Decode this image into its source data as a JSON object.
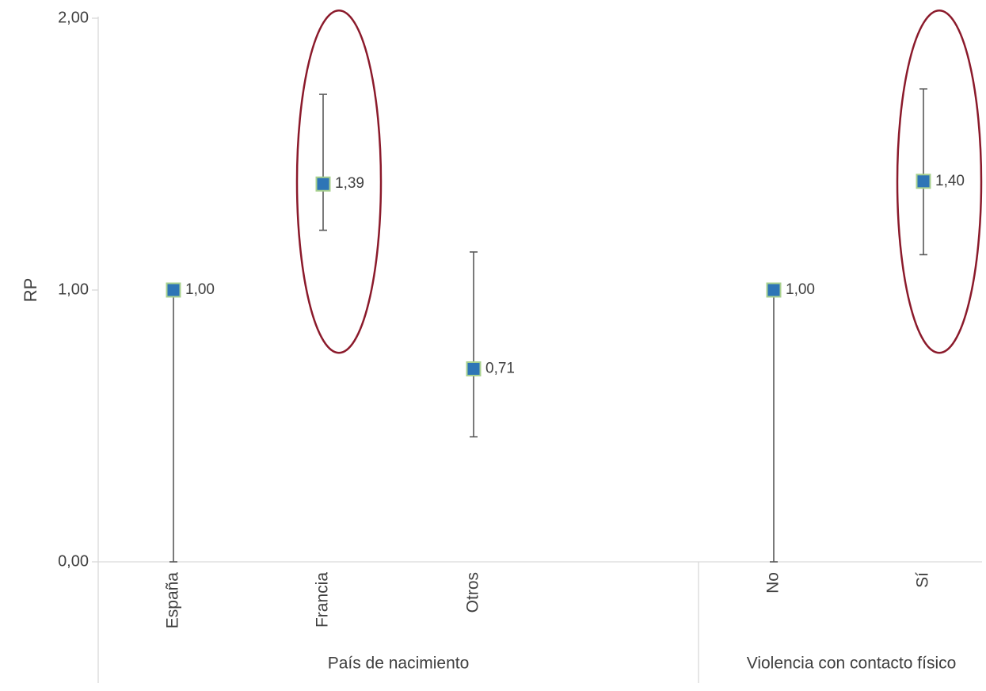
{
  "chart_data": {
    "type": "scatter",
    "title": "",
    "ylabel": "RP",
    "ylim": [
      0,
      2
    ],
    "y_ticks": [
      "0,00",
      "1,00",
      "2,00"
    ],
    "y_tick_values": [
      0,
      1,
      2
    ],
    "grid": false,
    "groups": [
      {
        "label": "País de nacimiento",
        "categories": [
          "España",
          "Francia",
          "Otros"
        ]
      },
      {
        "label": "Violencia con contacto físico",
        "categories": [
          "No",
          "Sí"
        ]
      }
    ],
    "points": [
      {
        "category": "España",
        "value": 1.0,
        "label": "1,00",
        "ci_low": 0.0,
        "ci_high": 1.0,
        "highlighted": false
      },
      {
        "category": "Francia",
        "value": 1.39,
        "label": "1,39",
        "ci_low": 1.22,
        "ci_high": 1.72,
        "highlighted": true
      },
      {
        "category": "Otros",
        "value": 0.71,
        "label": "0,71",
        "ci_low": 0.46,
        "ci_high": 1.14,
        "highlighted": false
      },
      {
        "category": "No",
        "value": 1.0,
        "label": "1,00",
        "ci_low": 0.0,
        "ci_high": 1.0,
        "highlighted": false
      },
      {
        "category": "Sí",
        "value": 1.4,
        "label": "1,40",
        "ci_low": 1.13,
        "ci_high": 1.74,
        "highlighted": true
      }
    ],
    "colors": {
      "marker_fill": "#2E75B6",
      "marker_border": "#A9D18E",
      "error_bar": "#595959",
      "highlight_ellipse": "#8B1A2B",
      "axis": "#D9D9D9",
      "text": "#404040"
    }
  }
}
